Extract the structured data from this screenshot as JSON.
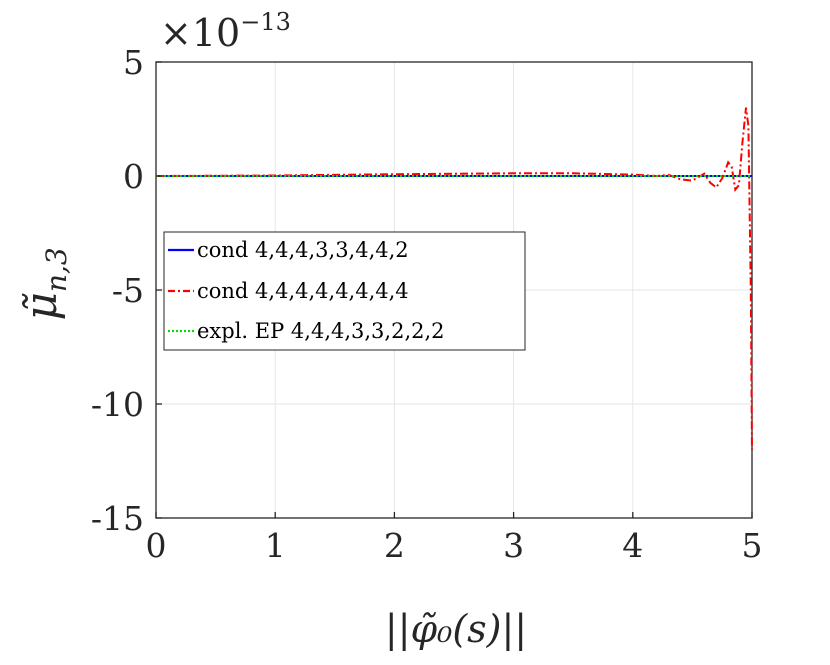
{
  "chart_data": {
    "type": "line",
    "title": "",
    "xlabel": "||φ̃₀(s)||",
    "ylabel": "μ̃",
    "ylabel_sub": "n,3",
    "y_exponent_label": "×10",
    "y_exponent_power": "−13",
    "xlim": [
      0,
      5
    ],
    "ylim": [
      -15,
      5
    ],
    "xticks": [
      0,
      1,
      2,
      3,
      4,
      5
    ],
    "xtick_labels": [
      "0",
      "1",
      "2",
      "3",
      "4",
      "5"
    ],
    "yticks": [
      5,
      0,
      -5,
      -10,
      -15
    ],
    "ytick_labels": [
      "5",
      "0",
      "-5",
      "-10",
      "-15"
    ],
    "grid": true,
    "legend_position": "center-left",
    "series": [
      {
        "name": "cond 4,4,4,3,3,4,4,2",
        "color": "#0000ff",
        "style": "solid",
        "x": [
          0,
          5
        ],
        "y": [
          0,
          0
        ]
      },
      {
        "name": "cond 4,4,4,4,4,4,4,4",
        "color": "#ff0000",
        "style": "dashdot",
        "x": [
          0,
          1.0,
          2.0,
          3.0,
          3.5,
          4.0,
          4.2,
          4.3,
          4.4,
          4.5,
          4.55,
          4.6,
          4.65,
          4.7,
          4.75,
          4.8,
          4.83,
          4.86,
          4.89,
          4.92,
          4.95,
          4.97,
          4.99,
          5.0
        ],
        "y": [
          0,
          0.02,
          0.08,
          0.12,
          0.12,
          0.06,
          0.0,
          0.05,
          -0.15,
          -0.2,
          -0.05,
          0.1,
          -0.3,
          -0.5,
          -0.1,
          0.6,
          0.4,
          -0.6,
          -0.4,
          1.5,
          3.0,
          2.2,
          -5.0,
          -12.0
        ]
      },
      {
        "name": "expl. EP 4,4,4,3,3,2,2,2",
        "color": "#00e000",
        "style": "dotted",
        "x": [
          0,
          5
        ],
        "y": [
          0,
          0
        ]
      }
    ]
  }
}
